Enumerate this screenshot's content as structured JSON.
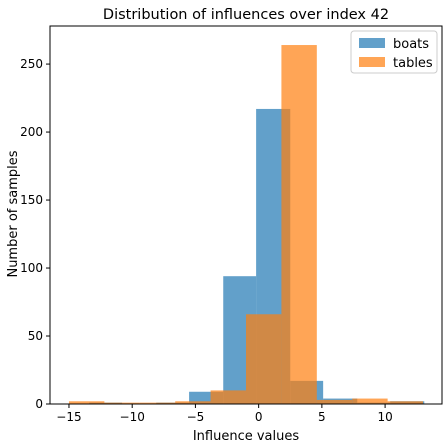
{
  "chart_data": {
    "type": "histogram",
    "title": "Distribution of influences over index 42",
    "xlabel": "Influence values",
    "ylabel": "Number of samples",
    "xlim": [
      -16.5,
      14.5
    ],
    "ylim": [
      0,
      278
    ],
    "xticks": [
      -15,
      -10,
      -5,
      0,
      5,
      10
    ],
    "xtick_labels": [
      "−15",
      "−10",
      "−5",
      "0",
      "5",
      "10"
    ],
    "yticks": [
      0,
      50,
      100,
      150,
      200,
      250
    ],
    "ytick_labels": [
      "0",
      "50",
      "100",
      "150",
      "200",
      "250"
    ],
    "grid": false,
    "legend_position": "top-right",
    "series": [
      {
        "name": "boats",
        "color": "#1f77b4",
        "alpha": 0.7,
        "bins": [
          {
            "x0": -13.4,
            "x1": -10.8,
            "value": 1
          },
          {
            "x0": -10.8,
            "x1": -8.1,
            "value": 0
          },
          {
            "x0": -8.1,
            "x1": -5.5,
            "value": 1
          },
          {
            "x0": -5.5,
            "x1": -2.8,
            "value": 9
          },
          {
            "x0": -2.8,
            "x1": -0.2,
            "value": 94
          },
          {
            "x0": -0.2,
            "x1": 2.5,
            "value": 217
          },
          {
            "x0": 2.5,
            "x1": 5.1,
            "value": 17
          },
          {
            "x0": 5.1,
            "x1": 7.8,
            "value": 4
          },
          {
            "x0": 7.8,
            "x1": 10.4,
            "value": 1
          },
          {
            "x0": 10.4,
            "x1": 13.1,
            "value": 2
          }
        ]
      },
      {
        "name": "tables",
        "color": "#ff7f0e",
        "alpha": 0.7,
        "bins": [
          {
            "x0": -15.0,
            "x1": -12.2,
            "value": 2
          },
          {
            "x0": -12.2,
            "x1": -9.4,
            "value": 1
          },
          {
            "x0": -9.4,
            "x1": -6.6,
            "value": 1
          },
          {
            "x0": -6.6,
            "x1": -3.8,
            "value": 2
          },
          {
            "x0": -3.8,
            "x1": -1.0,
            "value": 10
          },
          {
            "x0": -1.0,
            "x1": 1.8,
            "value": 66
          },
          {
            "x0": 1.8,
            "x1": 4.6,
            "value": 264
          },
          {
            "x0": 4.6,
            "x1": 7.4,
            "value": 3
          },
          {
            "x0": 7.4,
            "x1": 10.2,
            "value": 4
          },
          {
            "x0": 10.2,
            "x1": 13.0,
            "value": 2
          }
        ]
      }
    ]
  }
}
